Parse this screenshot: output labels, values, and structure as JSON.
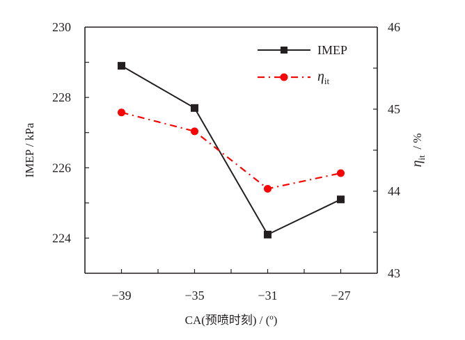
{
  "chart_data": {
    "type": "line",
    "title": "",
    "categories": [
      "−39",
      "−35",
      "−31",
      "−27"
    ],
    "x": [
      -39,
      -35,
      -31,
      -27
    ],
    "xlabel": "CA(预喷时刻) / (º)",
    "ylabel": "IMEP / kPa",
    "y2label_main": "η",
    "y2label_sub": "it",
    "y2label_unit": "  / %",
    "xlim": [
      -41,
      -25
    ],
    "ylim": [
      223,
      230
    ],
    "y2lim": [
      43,
      46
    ],
    "yticks": [
      224,
      226,
      228,
      230
    ],
    "yticks_minor": [
      223,
      225,
      227,
      229
    ],
    "y2ticks": [
      43,
      44,
      45,
      46
    ],
    "y2ticks_minor": [
      43.5,
      44.5,
      45.5
    ],
    "xticks_minor": [
      -37,
      -33,
      -29
    ],
    "grid": false,
    "legend_position": "top-right",
    "series": [
      {
        "name": "IMEP",
        "axis": "left",
        "color": "#231f20",
        "marker": "square",
        "line": "solid",
        "values": [
          228.9,
          227.7,
          224.1,
          225.1
        ]
      },
      {
        "name": "η",
        "name_sub": "it",
        "axis": "right",
        "color": "#ff0000",
        "marker": "circle",
        "line": "dashdot",
        "values": [
          44.96,
          44.73,
          44.03,
          44.22
        ]
      }
    ]
  }
}
